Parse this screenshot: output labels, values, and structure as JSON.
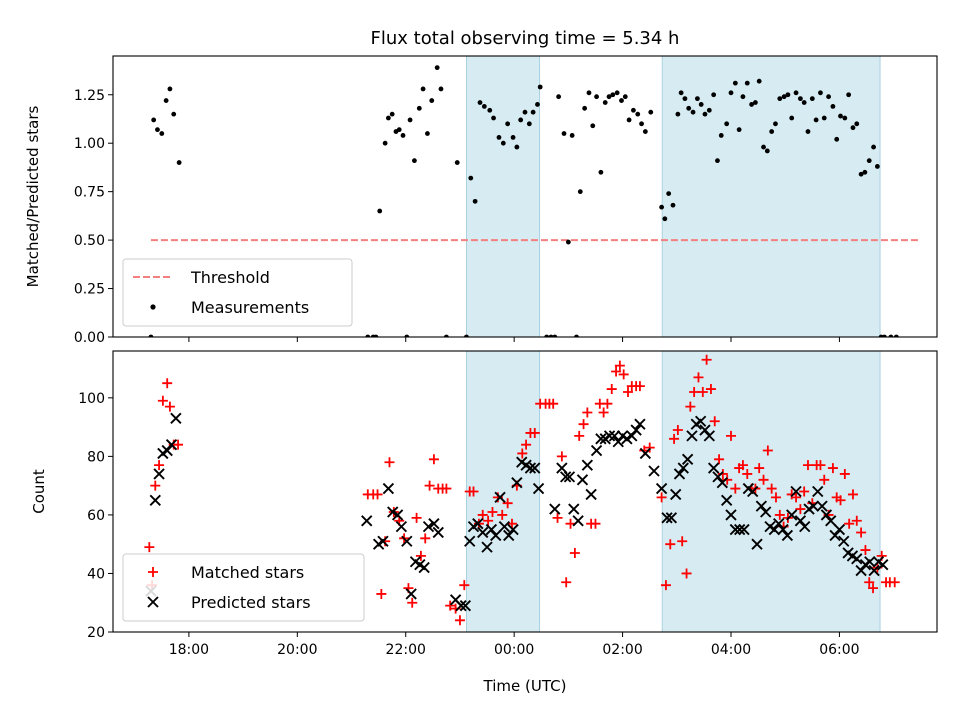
{
  "chart_data": [
    {
      "type": "scatter",
      "title": "Flux total observing time = 5.34 h",
      "xlabel": "",
      "ylabel": "Matched/Predicted stars",
      "xlim": [
        16.6,
        31.8
      ],
      "ylim": [
        0.0,
        1.45
      ],
      "yticks": [
        0.0,
        0.25,
        0.5,
        0.75,
        1.0,
        1.25
      ],
      "ytick_labels": [
        "0.00",
        "0.25",
        "0.50",
        "0.75",
        "1.00",
        "1.25"
      ],
      "grid": false,
      "legend_position": "lower-left",
      "shaded_intervals": [
        [
          23.12,
          24.47
        ],
        [
          26.73,
          30.75
        ]
      ],
      "threshold": {
        "name": "Threshold",
        "value": 0.5,
        "x_range": [
          17.3,
          31.5
        ],
        "color": "#f47f7f"
      },
      "series": [
        {
          "name": "Measurements",
          "color": "#000000",
          "marker": "dot",
          "x": [
            17.3,
            17.35,
            17.42,
            17.5,
            17.58,
            17.65,
            17.72,
            17.82,
            21.3,
            21.4,
            21.45,
            21.52,
            21.62,
            21.68,
            21.75,
            21.82,
            21.88,
            21.95,
            22.02,
            22.08,
            22.16,
            22.25,
            22.32,
            22.4,
            22.48,
            22.58,
            22.65,
            22.75,
            22.95,
            23.12,
            23.2,
            23.28,
            23.37,
            23.45,
            23.55,
            23.62,
            23.72,
            23.8,
            23.88,
            23.98,
            24.05,
            24.12,
            24.2,
            24.28,
            24.35,
            24.43,
            24.48,
            24.6,
            24.68,
            24.75,
            24.82,
            24.92,
            25.0,
            25.07,
            25.15,
            25.22,
            25.3,
            25.38,
            25.45,
            25.52,
            25.6,
            25.68,
            25.75,
            25.82,
            25.9,
            25.98,
            26.05,
            26.12,
            26.2,
            26.28,
            26.35,
            26.42,
            26.52,
            26.72,
            26.78,
            26.85,
            26.93,
            27.02,
            27.08,
            27.15,
            27.22,
            27.3,
            27.38,
            27.45,
            27.52,
            27.6,
            27.68,
            27.75,
            27.82,
            27.92,
            28.0,
            28.08,
            28.15,
            28.22,
            28.3,
            28.38,
            28.45,
            28.52,
            28.6,
            28.67,
            28.75,
            28.82,
            28.9,
            28.98,
            29.05,
            29.12,
            29.2,
            29.28,
            29.35,
            29.42,
            29.5,
            29.57,
            29.65,
            29.72,
            29.8,
            29.88,
            29.95,
            30.02,
            30.1,
            30.17,
            30.25,
            30.32,
            30.4,
            30.47,
            30.55,
            30.63,
            30.7,
            30.77,
            30.83,
            30.95,
            31.05
          ],
          "y": [
            0.0,
            1.12,
            1.07,
            1.05,
            1.22,
            1.28,
            1.15,
            0.9,
            0.0,
            0.0,
            0.0,
            0.65,
            1.0,
            1.13,
            1.15,
            1.06,
            1.07,
            1.04,
            0.0,
            1.12,
            0.91,
            1.18,
            1.28,
            1.05,
            1.22,
            1.39,
            1.28,
            0.0,
            0.9,
            0.0,
            0.82,
            0.7,
            1.21,
            1.19,
            1.17,
            1.13,
            1.03,
            1.0,
            1.1,
            1.03,
            0.98,
            1.12,
            1.16,
            1.1,
            1.16,
            1.2,
            1.29,
            0.0,
            0.0,
            0.0,
            1.24,
            1.05,
            0.49,
            1.04,
            0.0,
            0.75,
            1.18,
            1.26,
            1.09,
            1.24,
            0.85,
            1.21,
            1.24,
            1.25,
            1.26,
            1.22,
            1.24,
            1.12,
            1.17,
            1.15,
            1.1,
            1.06,
            1.16,
            0.67,
            0.61,
            0.74,
            0.68,
            1.15,
            1.26,
            1.23,
            1.18,
            1.16,
            1.23,
            1.2,
            1.15,
            1.17,
            1.25,
            0.91,
            1.04,
            1.1,
            1.26,
            1.31,
            1.07,
            1.24,
            1.31,
            1.2,
            1.21,
            1.32,
            0.98,
            0.96,
            1.06,
            1.1,
            1.23,
            1.24,
            1.25,
            1.13,
            1.26,
            1.23,
            1.21,
            1.06,
            1.23,
            1.12,
            1.26,
            1.13,
            1.24,
            1.19,
            1.02,
            1.14,
            1.13,
            1.25,
            1.08,
            1.1,
            0.84,
            0.85,
            0.91,
            0.98,
            0.88,
            0.0,
            0.0,
            0.0,
            0.0
          ]
        }
      ]
    },
    {
      "type": "scatter",
      "title": "",
      "xlabel": "Time (UTC)",
      "ylabel": "Count",
      "xlim": [
        16.6,
        31.8
      ],
      "ylim": [
        20,
        116
      ],
      "yticks": [
        20,
        40,
        60,
        80,
        100
      ],
      "ytick_labels": [
        "20",
        "40",
        "60",
        "80",
        "100"
      ],
      "xticks": [
        18,
        20,
        22,
        24,
        26,
        28,
        30
      ],
      "xtick_labels": [
        "18:00",
        "20:00",
        "22:00",
        "00:00",
        "02:00",
        "04:00",
        "06:00"
      ],
      "grid": false,
      "legend_position": "lower-left",
      "shaded_intervals": [
        [
          23.12,
          24.47
        ],
        [
          26.73,
          30.75
        ]
      ],
      "series": [
        {
          "name": "Matched stars",
          "color": "#ff0000",
          "marker": "plus",
          "x": [
            17.27,
            17.32,
            17.38,
            17.45,
            17.52,
            17.6,
            17.65,
            17.72,
            17.8,
            21.3,
            21.4,
            21.48,
            21.55,
            21.62,
            21.7,
            21.78,
            21.88,
            21.97,
            22.05,
            22.12,
            22.2,
            22.28,
            22.36,
            22.44,
            22.52,
            22.6,
            22.68,
            22.75,
            22.82,
            22.92,
            23.0,
            23.08,
            23.18,
            23.25,
            23.35,
            23.42,
            23.52,
            23.6,
            23.7,
            23.78,
            23.88,
            23.96,
            24.05,
            24.15,
            24.22,
            24.3,
            24.38,
            24.48,
            24.58,
            24.65,
            24.72,
            24.8,
            24.88,
            24.96,
            25.04,
            25.12,
            25.2,
            25.28,
            25.35,
            25.42,
            25.5,
            25.58,
            25.65,
            25.72,
            25.8,
            25.88,
            25.95,
            26.02,
            26.1,
            26.17,
            26.25,
            26.32,
            26.4,
            26.5,
            26.72,
            26.8,
            26.88,
            26.95,
            27.02,
            27.1,
            27.18,
            27.25,
            27.32,
            27.4,
            27.48,
            27.55,
            27.63,
            27.7,
            27.78,
            27.85,
            27.93,
            28.0,
            28.08,
            28.15,
            28.22,
            28.3,
            28.38,
            28.45,
            28.52,
            28.6,
            28.68,
            28.75,
            28.83,
            28.9,
            28.97,
            29.05,
            29.12,
            29.2,
            29.28,
            29.35,
            29.42,
            29.5,
            29.58,
            29.65,
            29.72,
            29.8,
            29.88,
            29.95,
            30.02,
            30.1,
            30.18,
            30.25,
            30.32,
            30.4,
            30.48,
            30.55,
            30.62,
            30.7,
            30.78,
            30.86,
            30.93,
            31.02
          ],
          "y": [
            49,
            36,
            70,
            77,
            99,
            105,
            97,
            84,
            84,
            67,
            67,
            67,
            33,
            51,
            78,
            61,
            58,
            52,
            35,
            30,
            59,
            46,
            52,
            70,
            79,
            69,
            69,
            69,
            29,
            28,
            24,
            36,
            68,
            68,
            57,
            60,
            58,
            61,
            66,
            60,
            64,
            57,
            70,
            81,
            84,
            88,
            88,
            98,
            98,
            98,
            98,
            59,
            80,
            37,
            57,
            47,
            87,
            91,
            95,
            57,
            57,
            98,
            95,
            98,
            103,
            109,
            111,
            108,
            102,
            104,
            104,
            104,
            82,
            83,
            66,
            36,
            50,
            86,
            89,
            51,
            40,
            97,
            102,
            107,
            102,
            113,
            103,
            92,
            79,
            74,
            72,
            87,
            69,
            76,
            77,
            74,
            69,
            69,
            76,
            72,
            82,
            69,
            66,
            60,
            56,
            59,
            67,
            66,
            62,
            68,
            77,
            64,
            77,
            77,
            72,
            60,
            76,
            66,
            65,
            74,
            57,
            67,
            58,
            54,
            48,
            37,
            35,
            42,
            46,
            37,
            37,
            37
          ]
        },
        {
          "name": "Predicted stars",
          "color": "#000000",
          "marker": "x",
          "x": [
            17.3,
            17.38,
            17.45,
            17.52,
            17.6,
            17.68,
            17.76,
            21.28,
            21.5,
            21.58,
            21.68,
            21.76,
            21.85,
            21.92,
            22.02,
            22.1,
            22.18,
            22.26,
            22.34,
            22.42,
            22.52,
            22.6,
            22.92,
            23.02,
            23.1,
            23.18,
            23.25,
            23.33,
            23.42,
            23.5,
            23.58,
            23.66,
            23.74,
            23.82,
            23.9,
            23.98,
            24.05,
            24.14,
            24.22,
            24.3,
            24.38,
            24.45,
            24.75,
            24.88,
            24.95,
            25.02,
            25.1,
            25.18,
            25.26,
            25.35,
            25.42,
            25.52,
            25.6,
            25.68,
            25.76,
            25.85,
            25.92,
            26.0,
            26.08,
            26.17,
            26.25,
            26.32,
            26.42,
            26.58,
            26.72,
            26.82,
            26.9,
            26.98,
            27.05,
            27.12,
            27.2,
            27.28,
            27.36,
            27.44,
            27.52,
            27.6,
            27.68,
            27.76,
            27.84,
            27.92,
            28.0,
            28.08,
            28.16,
            28.24,
            28.32,
            28.4,
            28.48,
            28.56,
            28.64,
            28.72,
            28.8,
            28.88,
            28.96,
            29.04,
            29.12,
            29.2,
            29.28,
            29.36,
            29.44,
            29.52,
            29.6,
            29.68,
            29.76,
            29.84,
            29.92,
            30.0,
            30.08,
            30.16,
            30.24,
            30.32,
            30.4,
            30.48,
            30.56,
            30.64,
            30.72,
            30.8
          ],
          "y": [
            34,
            65,
            74,
            81,
            82,
            84,
            93,
            58,
            50,
            51,
            69,
            61,
            60,
            56,
            51,
            33,
            44,
            43,
            42,
            56,
            57,
            54,
            31,
            29,
            29,
            51,
            56,
            57,
            54,
            49,
            55,
            53,
            66,
            56,
            53,
            55,
            71,
            78,
            77,
            76,
            76,
            69,
            62,
            76,
            73,
            73,
            62,
            58,
            72,
            77,
            67,
            82,
            86,
            86,
            87,
            87,
            85,
            87,
            86,
            87,
            89,
            91,
            81,
            75,
            69,
            59,
            59,
            67,
            74,
            76,
            79,
            87,
            91,
            92,
            89,
            87,
            76,
            73,
            71,
            65,
            60,
            55,
            55,
            55,
            69,
            68,
            50,
            63,
            61,
            56,
            55,
            57,
            55,
            53,
            60,
            68,
            58,
            56,
            62,
            63,
            68,
            63,
            60,
            58,
            53,
            55,
            51,
            47,
            46,
            45,
            41,
            43,
            44,
            41,
            44,
            43
          ]
        }
      ]
    }
  ]
}
